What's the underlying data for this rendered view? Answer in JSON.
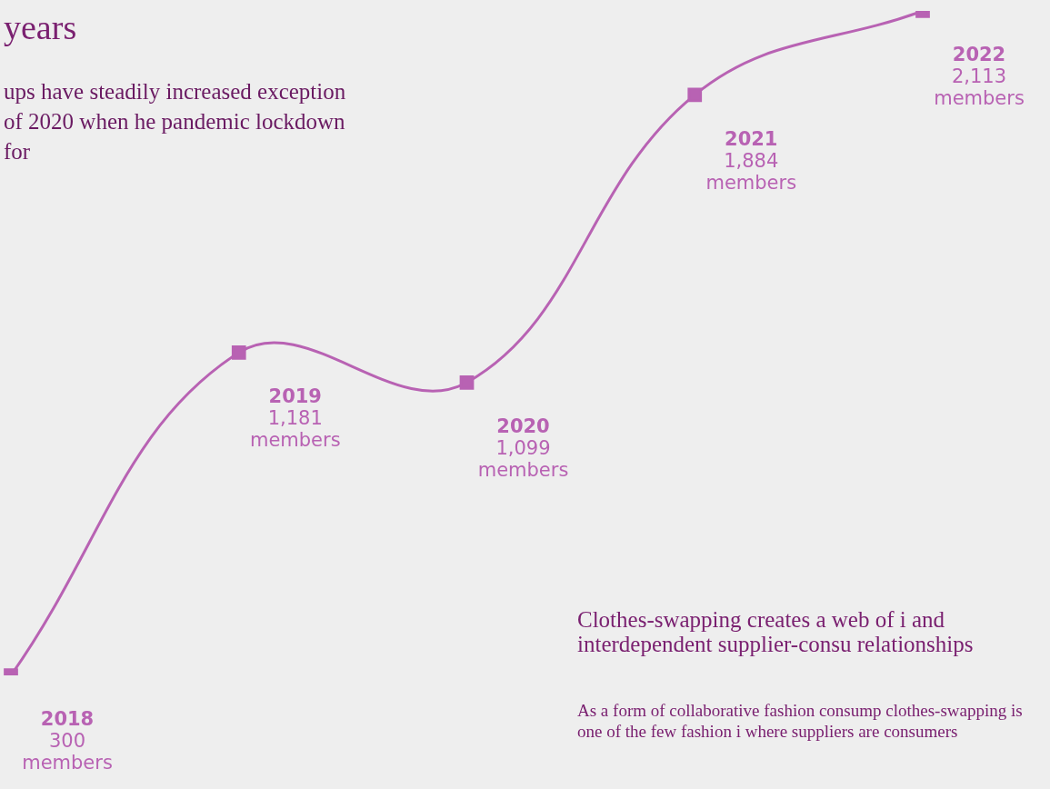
{
  "chart_data": {
    "type": "line",
    "title": "years",
    "subtitle": "ups have steadily increased exception of 2020 when he pandemic lockdown for",
    "categories": [
      "2018",
      "2019",
      "2020",
      "2021",
      "2022"
    ],
    "series": [
      {
        "color": "#b862b3",
        "values": [
          300,
          1181,
          1099,
          1884,
          2113
        ],
        "value_labels": [
          "300 members",
          "1,181 members",
          "1,099 members",
          "1,884 members",
          "2,113 members"
        ]
      }
    ],
    "marker": "square",
    "line_style": "solid",
    "grid": false,
    "legend": false,
    "tick_labels": false,
    "annotations": [
      "Clothes-swapping creates a web of i and interdependent supplier-consu relationships",
      "As a form of collaborative fashion consump clothes-swapping is one of the few fashion i where suppliers are consumers"
    ]
  }
}
